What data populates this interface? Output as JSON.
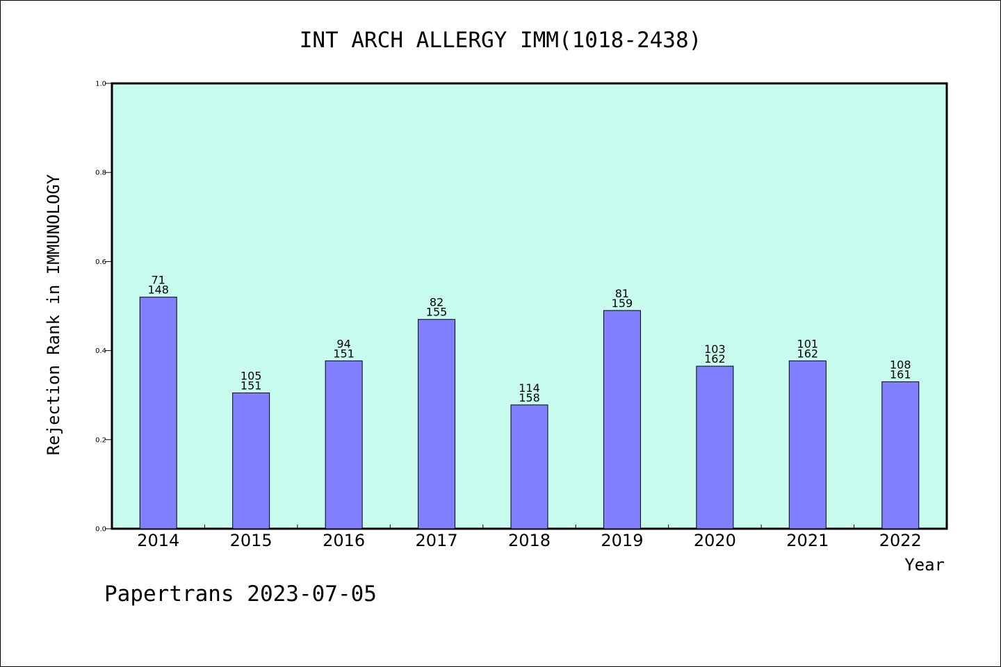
{
  "footer": "Papertrans 2023-07-05",
  "chart_data": {
    "type": "bar",
    "title": "INT ARCH ALLERGY IMM(1018-2438)",
    "xlabel": "Year",
    "ylabel": "Rejection Rank in IMMUNOLOGY",
    "ylim": [
      0,
      1.0
    ],
    "yticks": [
      "0.0",
      "0.2",
      "0.4",
      "0.6",
      "0.8",
      "1.0"
    ],
    "categories": [
      "2014",
      "2015",
      "2016",
      "2017",
      "2018",
      "2019",
      "2020",
      "2021",
      "2022"
    ],
    "values": [
      0.52,
      0.305,
      0.377,
      0.47,
      0.278,
      0.49,
      0.365,
      0.377,
      0.33
    ],
    "labels_top": [
      "71",
      "105",
      "94",
      "82",
      "114",
      "81",
      "103",
      "101",
      "108"
    ],
    "labels_bottom": [
      "148",
      "151",
      "151",
      "155",
      "158",
      "159",
      "162",
      "162",
      "161"
    ],
    "colors": {
      "plot_bg": "#c8fcee",
      "bar": "#8080ff",
      "bar_edge": "#000000"
    },
    "grid": false
  }
}
